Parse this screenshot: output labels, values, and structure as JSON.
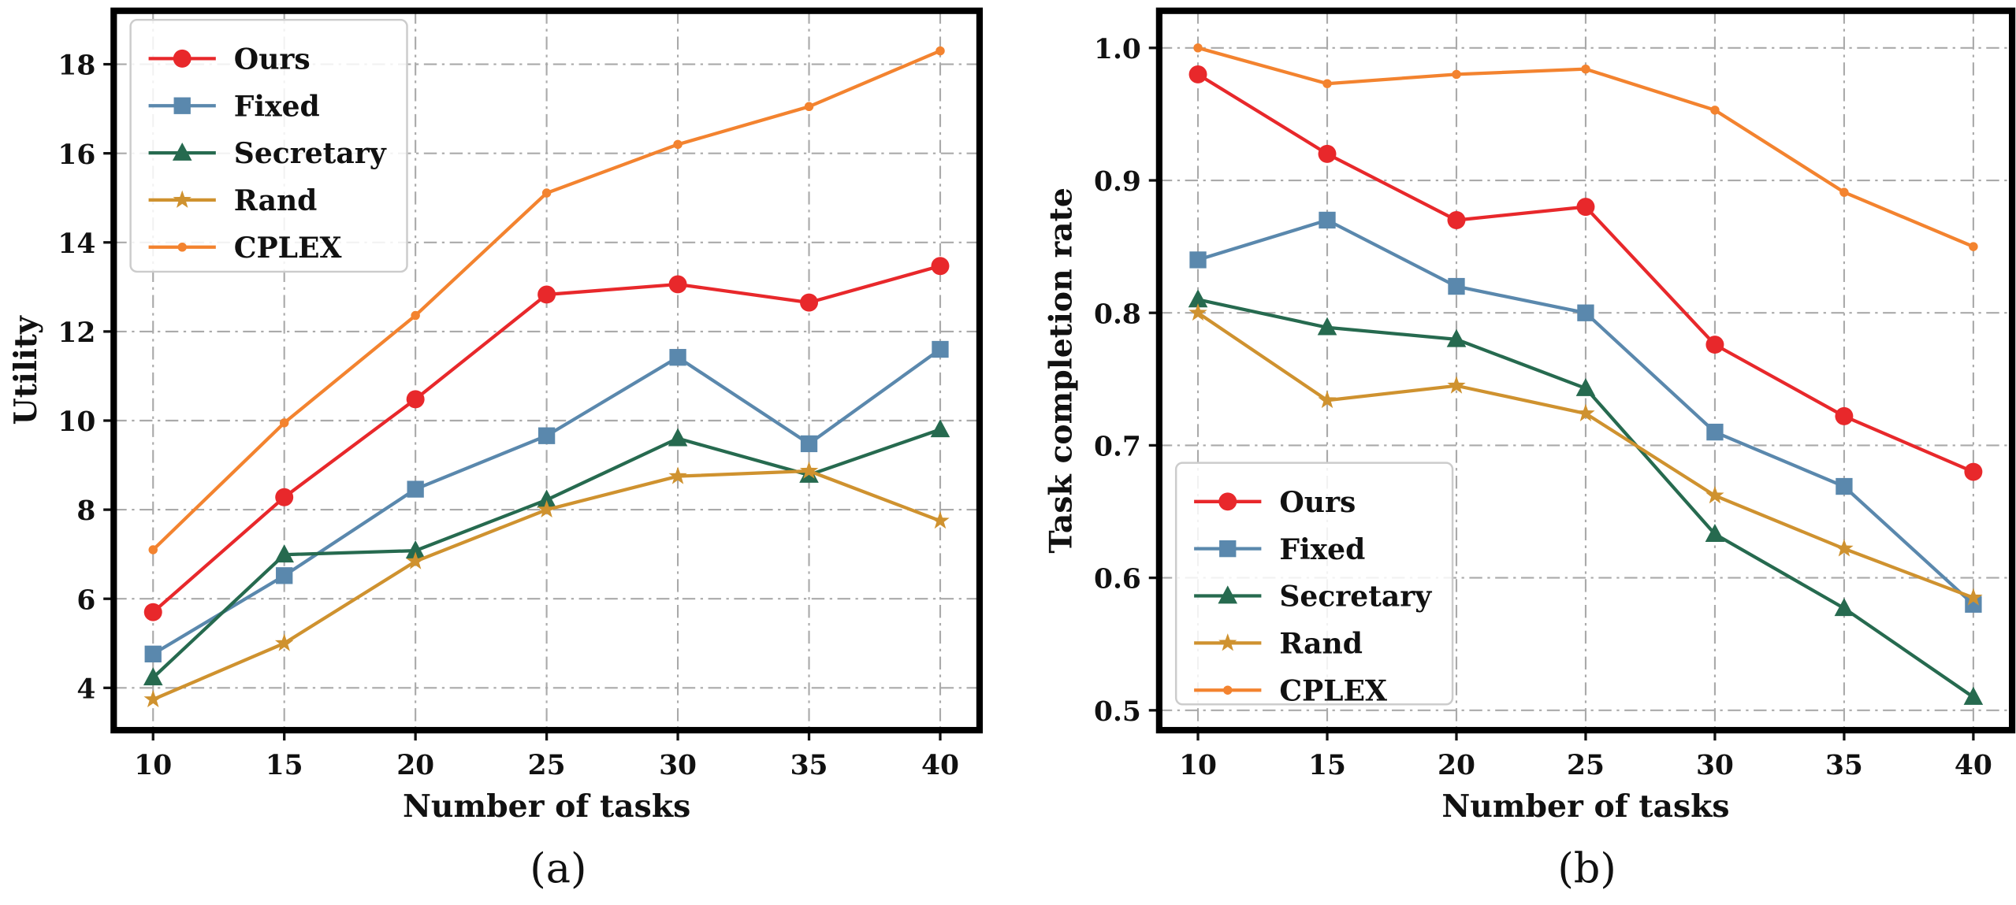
{
  "chart_data": [
    {
      "type": "line",
      "panel": "(a)",
      "xlabel": "Number of tasks",
      "ylabel": "Utility",
      "x": [
        10,
        15,
        20,
        25,
        30,
        35,
        40
      ],
      "xlim": [
        8.5,
        41.5
      ],
      "ylim": [
        3.05,
        19.2
      ],
      "xticks": [
        "10",
        "15",
        "20",
        "25",
        "30",
        "35",
        "40"
      ],
      "yticks": [
        "4",
        "6",
        "8",
        "10",
        "12",
        "14",
        "16",
        "18"
      ],
      "ytick_values": [
        4,
        6,
        8,
        10,
        12,
        14,
        16,
        18
      ],
      "grid": true,
      "legend_position": "top-left",
      "series": [
        {
          "name": "Ours",
          "color": "#e8282b",
          "marker": "circle",
          "values": [
            5.7,
            8.28,
            10.48,
            12.83,
            13.06,
            12.65,
            13.47
          ]
        },
        {
          "name": "Fixed",
          "color": "#5a88ad",
          "marker": "square",
          "values": [
            4.76,
            6.52,
            8.46,
            9.66,
            11.42,
            9.48,
            11.6
          ]
        },
        {
          "name": "Secretary",
          "color": "#266a4f",
          "marker": "triangle",
          "values": [
            4.23,
            6.99,
            7.08,
            8.22,
            9.6,
            8.78,
            9.8
          ]
        },
        {
          "name": "Rand",
          "color": "#cf922f",
          "marker": "star",
          "values": [
            3.74,
            5.0,
            6.84,
            8.0,
            8.75,
            8.87,
            7.75
          ]
        },
        {
          "name": "CPLEX",
          "color": "#f3832f",
          "marker": "dot",
          "values": [
            7.1,
            9.95,
            12.36,
            15.11,
            16.2,
            17.05,
            18.3
          ]
        }
      ]
    },
    {
      "type": "line",
      "panel": "(b)",
      "xlabel": "Number of tasks",
      "ylabel": "Task completion rate",
      "x": [
        10,
        15,
        20,
        25,
        30,
        35,
        40
      ],
      "xlim": [
        8.5,
        41.5
      ],
      "ylim": [
        0.485,
        1.028
      ],
      "xticks": [
        "10",
        "15",
        "20",
        "25",
        "30",
        "35",
        "40"
      ],
      "yticks": [
        "0.5",
        "0.6",
        "0.7",
        "0.8",
        "0.9",
        "1.0"
      ],
      "ytick_values": [
        0.5,
        0.6,
        0.7,
        0.8,
        0.9,
        1.0
      ],
      "grid": true,
      "legend_position": "bottom-left",
      "series": [
        {
          "name": "Ours",
          "color": "#e8282b",
          "marker": "circle",
          "values": [
            0.98,
            0.92,
            0.87,
            0.88,
            0.776,
            0.722,
            0.68
          ]
        },
        {
          "name": "Fixed",
          "color": "#5a88ad",
          "marker": "square",
          "values": [
            0.84,
            0.87,
            0.82,
            0.8,
            0.71,
            0.669,
            0.58
          ]
        },
        {
          "name": "Secretary",
          "color": "#266a4f",
          "marker": "triangle",
          "values": [
            0.81,
            0.789,
            0.78,
            0.743,
            0.633,
            0.577,
            0.51
          ]
        },
        {
          "name": "Rand",
          "color": "#cf922f",
          "marker": "star",
          "values": [
            0.8,
            0.734,
            0.745,
            0.724,
            0.662,
            0.622,
            0.585
          ]
        },
        {
          "name": "CPLEX",
          "color": "#f3832f",
          "marker": "dot",
          "values": [
            1.0,
            0.973,
            0.98,
            0.984,
            0.953,
            0.891,
            0.85
          ]
        }
      ]
    }
  ]
}
